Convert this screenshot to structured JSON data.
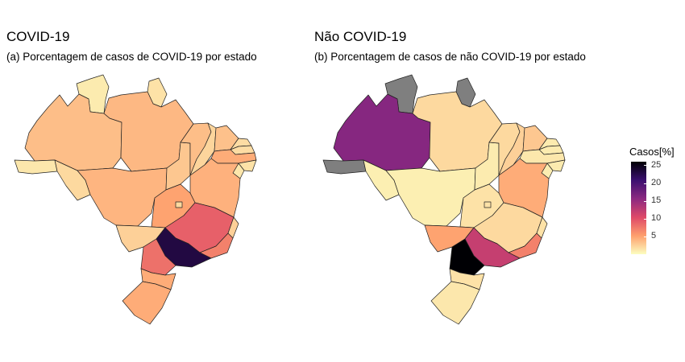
{
  "panels": [
    {
      "title": "COVID-19",
      "subtitle": "(a) Porcentagem de casos de COVID-19 por estado"
    },
    {
      "title": "Não COVID-19",
      "subtitle": "(b) Porcentagem de casos de não COVID-19 por estado"
    }
  ],
  "legend": {
    "title": "Casos[%]",
    "ticks": [
      "25",
      "20",
      "15",
      "10",
      "5"
    ],
    "colors": [
      "#000004",
      "#3b0f70",
      "#8c2981",
      "#de4968",
      "#fe9f6d",
      "#fcfdbf"
    ],
    "no_data_color": "#7f7f7f"
  },
  "chart_data": {
    "type": "choropleth",
    "region": "Brasil",
    "scale": {
      "name": "Casos[%]",
      "min": 0,
      "max": 26,
      "palette": "magma (reversed)"
    },
    "maps": [
      {
        "title": "COVID-19",
        "values": {
          "AM": 3.5,
          "PA": 3.8,
          "RR": 1.0,
          "AP": 1.5,
          "AC": 1.2,
          "RO": 2.0,
          "MT": 4.0,
          "TO": 3.0,
          "MA": 3.5,
          "PI": 2.2,
          "CE": 3.3,
          "RN": 1.8,
          "PB": 1.8,
          "PE": 4.5,
          "AL": 1.5,
          "SE": 1.3,
          "BA": 4.2,
          "GO": 5.0,
          "DF": 2.0,
          "MS": 2.5,
          "MG": 9.0,
          "ES": 2.5,
          "RJ": 7.0,
          "SP": 23.0,
          "PR": 8.0,
          "SC": 4.5,
          "RS": 4.5
        }
      },
      {
        "title": "Não COVID-19",
        "values": {
          "AM": 16.0,
          "PA": 2.0,
          "RR": null,
          "AP": null,
          "AC": null,
          "RO": 0.8,
          "MT": 0.8,
          "TO": 1.0,
          "MA": 2.0,
          "PI": 2.5,
          "CE": 3.0,
          "RN": 1.0,
          "PB": 1.0,
          "PE": 1.2,
          "AL": 1.0,
          "SE": 0.9,
          "BA": 4.5,
          "GO": 1.5,
          "DF": 1.5,
          "MS": 5.0,
          "MG": 2.0,
          "ES": 1.5,
          "RJ": 7.0,
          "SP": 12.0,
          "PR": 26.0,
          "SC": 1.5,
          "RS": 1.2
        }
      }
    ]
  }
}
